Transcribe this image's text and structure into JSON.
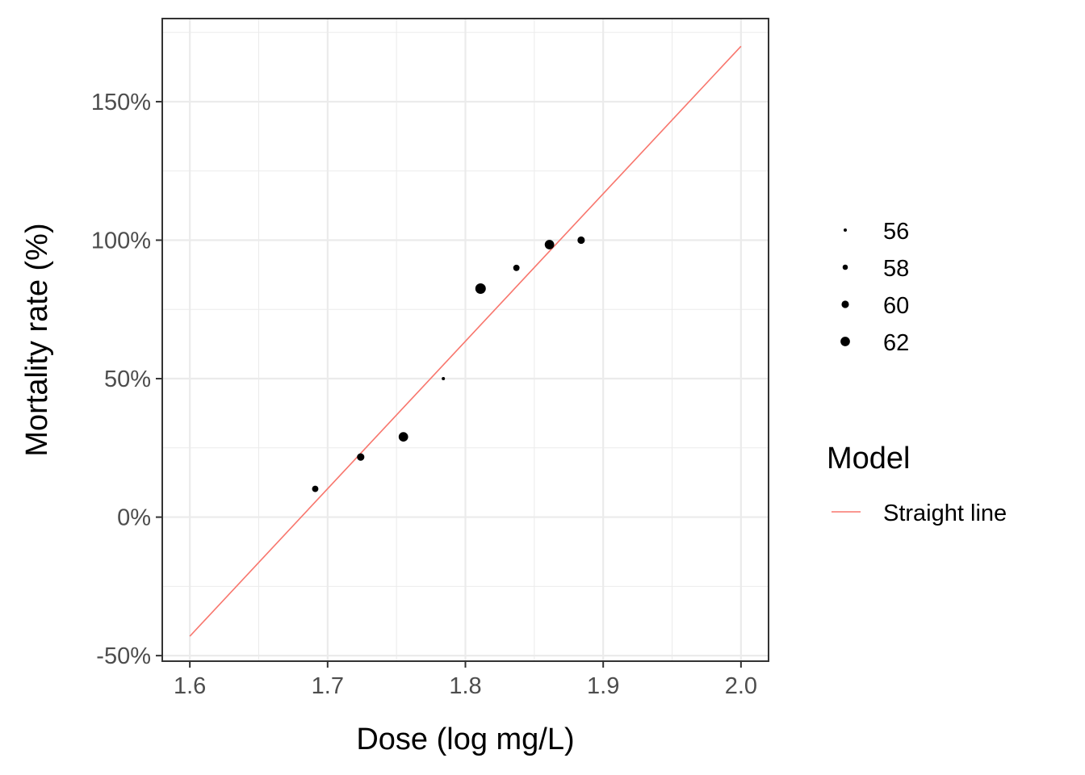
{
  "chart_data": {
    "type": "scatter",
    "xlabel": "Dose (log mg/L)",
    "ylabel": "Mortality rate (%)",
    "xlim": [
      1.58,
      2.02
    ],
    "ylim": [
      -52,
      180
    ],
    "x_ticks": [
      1.6,
      1.7,
      1.8,
      1.9,
      2.0
    ],
    "x_tick_labels": [
      "1.6",
      "1.7",
      "1.8",
      "1.9",
      "2.0"
    ],
    "y_ticks": [
      -50,
      0,
      50,
      100,
      150
    ],
    "y_tick_labels": [
      "-50%",
      "0%",
      "50%",
      "100%",
      "150%"
    ],
    "grid": true,
    "legend_position": "right",
    "points": [
      {
        "x": 1.691,
        "y": 10.2,
        "n": 59
      },
      {
        "x": 1.724,
        "y": 21.7,
        "n": 60
      },
      {
        "x": 1.755,
        "y": 29.0,
        "n": 62
      },
      {
        "x": 1.784,
        "y": 50.0,
        "n": 56
      },
      {
        "x": 1.811,
        "y": 82.5,
        "n": 63
      },
      {
        "x": 1.837,
        "y": 90.0,
        "n": 59
      },
      {
        "x": 1.861,
        "y": 98.4,
        "n": 62
      },
      {
        "x": 1.884,
        "y": 100.0,
        "n": 60
      }
    ],
    "point_color": "#000000",
    "size_legend": {
      "title": "",
      "entries": [
        {
          "label": "56",
          "n": 56
        },
        {
          "label": "58",
          "n": 58
        },
        {
          "label": "60",
          "n": 60
        },
        {
          "label": "62",
          "n": 62
        }
      ]
    },
    "lines": [
      {
        "name": "Straight line",
        "color": "#f8766d",
        "x": [
          1.6,
          2.0
        ],
        "y": [
          -43,
          170
        ]
      }
    ],
    "line_legend": {
      "title": "Model",
      "entries": [
        {
          "label": "Straight line",
          "color": "#f8766d"
        }
      ]
    }
  }
}
